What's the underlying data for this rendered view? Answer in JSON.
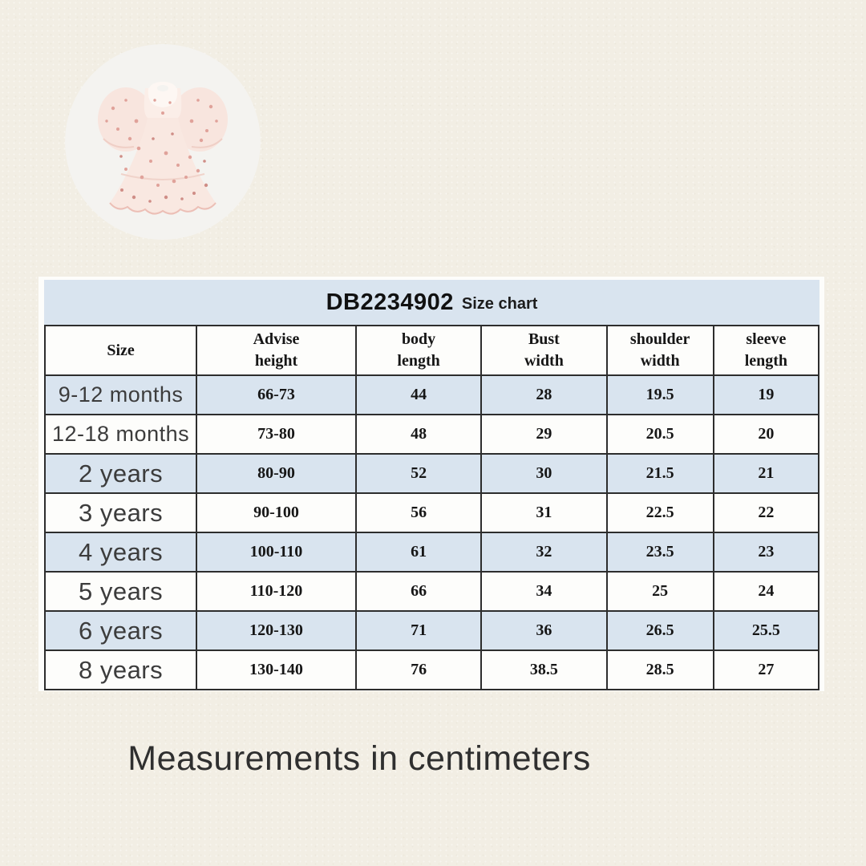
{
  "page": {
    "background_color": "#f2eee4",
    "caption": "Measurements in centimeters"
  },
  "product_image": {
    "description": "pale pink floral tulle dress with puff sleeves on light grey circle",
    "circle_color": "#f4f3f0",
    "dress_color": "#f9e8e1",
    "floral_dot_color": "#dfa099"
  },
  "size_chart": {
    "title": "DB2234902",
    "subtitle": "Size chart",
    "band_color": "#d9e4ef",
    "alt_row_color": "#d9e4ef",
    "columns": [
      {
        "label": "Size",
        "lines": [
          "Size"
        ]
      },
      {
        "label": "Advise height",
        "lines": [
          "Advise",
          "height"
        ]
      },
      {
        "label": "body length",
        "lines": [
          "body",
          "length"
        ]
      },
      {
        "label": "Bust width",
        "lines": [
          "Bust",
          "width"
        ]
      },
      {
        "label": "shoulder width",
        "lines": [
          "shoulder",
          "width"
        ]
      },
      {
        "label": "sleeve length",
        "lines": [
          "sleeve",
          "length"
        ]
      }
    ],
    "rows": [
      {
        "size": "9-12 months",
        "advise_height": "66-73",
        "body_length": "44",
        "bust_width": "28",
        "shoulder_width": "19.5",
        "sleeve_length": "19"
      },
      {
        "size": "12-18 months",
        "advise_height": "73-80",
        "body_length": "48",
        "bust_width": "29",
        "shoulder_width": "20.5",
        "sleeve_length": "20"
      },
      {
        "size": "2 years",
        "advise_height": "80-90",
        "body_length": "52",
        "bust_width": "30",
        "shoulder_width": "21.5",
        "sleeve_length": "21"
      },
      {
        "size": "3 years",
        "advise_height": "90-100",
        "body_length": "56",
        "bust_width": "31",
        "shoulder_width": "22.5",
        "sleeve_length": "22"
      },
      {
        "size": "4 years",
        "advise_height": "100-110",
        "body_length": "61",
        "bust_width": "32",
        "shoulder_width": "23.5",
        "sleeve_length": "23"
      },
      {
        "size": "5 years",
        "advise_height": "110-120",
        "body_length": "66",
        "bust_width": "34",
        "shoulder_width": "25",
        "sleeve_length": "24"
      },
      {
        "size": "6 years",
        "advise_height": "120-130",
        "body_length": "71",
        "bust_width": "36",
        "shoulder_width": "26.5",
        "sleeve_length": "25.5"
      },
      {
        "size": "8 years",
        "advise_height": "130-140",
        "body_length": "76",
        "bust_width": "38.5",
        "shoulder_width": "28.5",
        "sleeve_length": "27"
      }
    ]
  }
}
